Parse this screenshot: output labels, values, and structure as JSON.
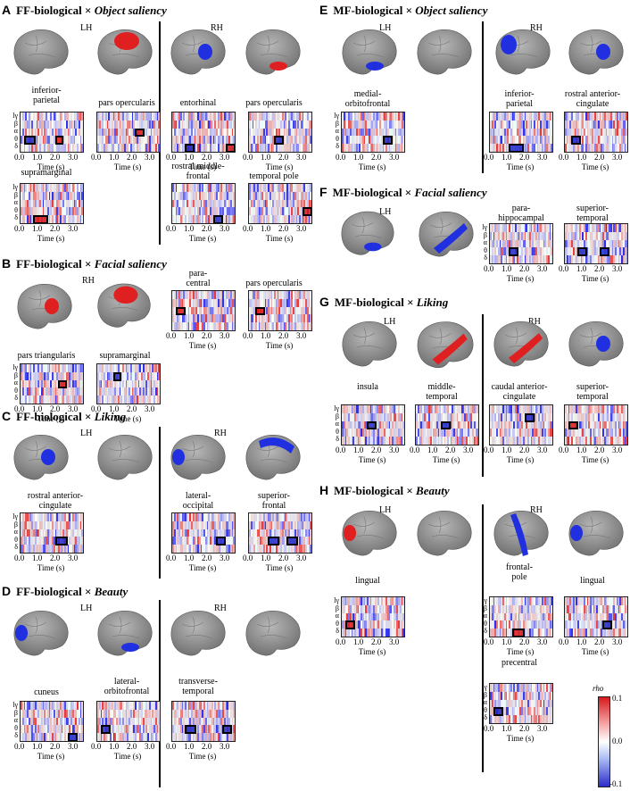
{
  "axis": {
    "bands": [
      "lγ",
      "β",
      "α",
      "θ",
      "δ"
    ],
    "ticks": [
      "0.0",
      "1.0",
      "2.0",
      "3.0"
    ],
    "xlabel": "Time (s)"
  },
  "colors": {
    "positive": "#e02020",
    "negative": "#2030e0",
    "brain": "#9a9a9a"
  },
  "colorbar": {
    "title": "rho",
    "max": "0.1",
    "mid": "0.0",
    "min": "-0.1"
  },
  "panels": {
    "A": {
      "letter": "A",
      "model": "FF-biological ×",
      "attribute": "Object saliency",
      "left": "LH",
      "right": "RH",
      "regions": [
        "inferior-\nparietal",
        "pars opercularis",
        "entorhinal",
        "pars opercularis",
        "supramarginal",
        "rostral middle-\nfrontal",
        "temporal pole"
      ]
    },
    "B": {
      "letter": "B",
      "model": "FF-biological ×",
      "attribute": "Facial saliency",
      "left": "RH",
      "regions": [
        "para-\ncentral",
        "pars opercularis",
        "pars triangularis",
        "supramarginal"
      ]
    },
    "C": {
      "letter": "C",
      "model": "FF-biological ×",
      "attribute": "Liking",
      "left": "LH",
      "right": "RH",
      "regions": [
        "rostral anterior-\ncingulate",
        "lateral-\noccipital",
        "superior-\nfrontal"
      ]
    },
    "D": {
      "letter": "D",
      "model": "FF-biological ×",
      "attribute": "Beauty",
      "left": "LH",
      "right": "RH",
      "regions": [
        "cuneus",
        "lateral-\norbitofrontal",
        "transverse-\ntemporal"
      ]
    },
    "E": {
      "letter": "E",
      "model": "MF-biological ×",
      "attribute": "Object saliency",
      "left": "LH",
      "right": "RH",
      "regions": [
        "medial-\norbitofrontal",
        "inferior-\nparietal",
        "rostral anterior-\ncingulate"
      ]
    },
    "F": {
      "letter": "F",
      "model": "MF-biological ×",
      "attribute": "Facial saliency",
      "left": "LH",
      "regions": [
        "para-\nhippocampal",
        "superior-\ntemporal"
      ]
    },
    "G": {
      "letter": "G",
      "model": "MF-biological ×",
      "attribute": "Liking",
      "left": "LH",
      "right": "RH",
      "regions": [
        "insula",
        "middle-\ntemporal",
        "caudal anterior-\ncingulate",
        "superior-\ntemporal"
      ]
    },
    "H": {
      "letter": "H",
      "model": "MF-biological ×",
      "attribute": "Beauty",
      "left": "LH",
      "right": "RH",
      "regions": [
        "lingual",
        "frontal-\npole",
        "lingual",
        "precentral"
      ]
    }
  }
}
